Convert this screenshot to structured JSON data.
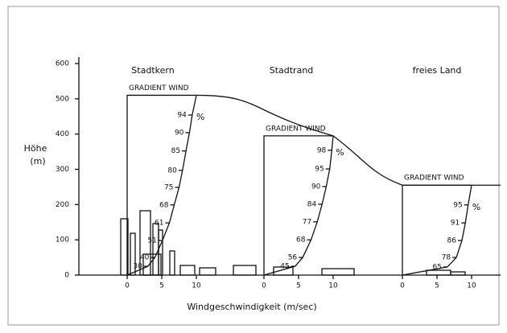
{
  "chart_data": {
    "type": "wind-profile",
    "y_label_lines": [
      "Höhe",
      "(m)"
    ],
    "x_label": "Windgeschwindigkeit (m/sec)",
    "ylim": [
      0,
      600
    ],
    "yticks": [
      0,
      100,
      200,
      300,
      400,
      500,
      600
    ],
    "xticks": [
      0,
      5,
      10
    ],
    "percent_sign": "%",
    "panels": [
      {
        "title": "Stadtkern",
        "gradient_label": "GRADIENT WIND",
        "gradient_height": 510,
        "profile": [
          {
            "label": 94,
            "height": 454
          },
          {
            "label": 90,
            "height": 404
          },
          {
            "label": 85,
            "height": 352
          },
          {
            "label": 80,
            "height": 297
          },
          {
            "label": 75,
            "height": 249
          },
          {
            "label": 68,
            "height": 199
          },
          {
            "label": 61,
            "height": 148
          },
          {
            "label": 51,
            "height": 98
          },
          {
            "label": 40,
            "height": 50
          },
          {
            "label": 30,
            "height": 25
          }
        ]
      },
      {
        "title": "Stadtrand",
        "gradient_label": "GRADIENT WIND",
        "gradient_height": 395,
        "profile": [
          {
            "label": 98,
            "height": 354
          },
          {
            "label": 95,
            "height": 301
          },
          {
            "label": 90,
            "height": 251
          },
          {
            "label": 84,
            "height": 201
          },
          {
            "label": 77,
            "height": 151
          },
          {
            "label": 68,
            "height": 100
          },
          {
            "label": 56,
            "height": 50
          },
          {
            "label": 45,
            "height": 25
          }
        ]
      },
      {
        "title": "freies Land",
        "gradient_label": "GRADIENT WIND",
        "gradient_height": 255,
        "profile": [
          {
            "label": 95,
            "height": 199
          },
          {
            "label": 91,
            "height": 148
          },
          {
            "label": 86,
            "height": 98
          },
          {
            "label": 78,
            "height": 50
          },
          {
            "label": 65,
            "height": 23
          }
        ]
      }
    ]
  }
}
